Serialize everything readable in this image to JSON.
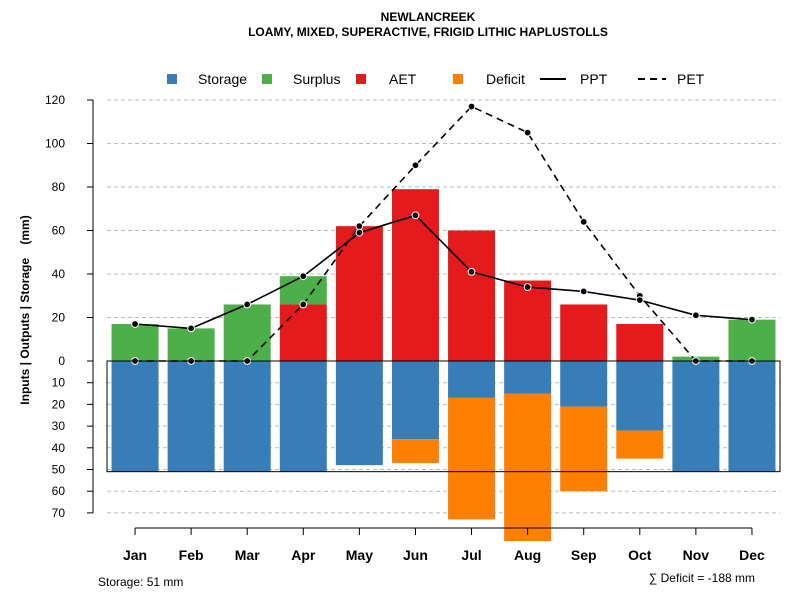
{
  "chart_data": {
    "type": "bar",
    "title": "NEWLANCREEK",
    "subtitle": "LOAMY, MIXED, SUPERACTIVE, FRIGID LITHIC HAPLUSTOLLS",
    "ylabel": "Inputs | Outputs | Storage    (mm)",
    "xlabel": "",
    "categories": [
      "Jan",
      "Feb",
      "Mar",
      "Apr",
      "May",
      "Jun",
      "Jul",
      "Aug",
      "Sep",
      "Oct",
      "Nov",
      "Dec"
    ],
    "ylim_upper": [
      0,
      120
    ],
    "ylim_lower": [
      0,
      70
    ],
    "yticks_upper": [
      "0",
      "20",
      "40",
      "60",
      "80",
      "100",
      "120"
    ],
    "yticks_lower": [
      "10",
      "20",
      "30",
      "40",
      "50",
      "60",
      "70"
    ],
    "storage_capacity": 51,
    "grid": true,
    "legend_position": "top",
    "legend": {
      "storage": "Storage",
      "surplus": "Surplus",
      "aet": "AET",
      "deficit": "Deficit",
      "ppt": "PPT",
      "pet": "PET"
    },
    "series": [
      {
        "name": "Surplus",
        "values": [
          17,
          15,
          26,
          13,
          0,
          0,
          0,
          0,
          0,
          0,
          2,
          19
        ]
      },
      {
        "name": "AET",
        "values": [
          0,
          0,
          0,
          26,
          62,
          79,
          60,
          37,
          26,
          17,
          0,
          0
        ]
      },
      {
        "name": "Storage",
        "values": [
          51,
          51,
          51,
          51,
          48,
          36,
          17,
          15,
          21,
          32,
          51,
          51
        ]
      },
      {
        "name": "Deficit",
        "values": [
          0,
          0,
          0,
          0,
          0,
          11,
          56,
          68,
          39,
          13,
          0,
          0
        ]
      },
      {
        "name": "PPT",
        "values": [
          17,
          15,
          26,
          39,
          59,
          67,
          41,
          34,
          32,
          28,
          21,
          19
        ]
      },
      {
        "name": "PET",
        "values": [
          0,
          0,
          0,
          26,
          62,
          90,
          117,
          105,
          64,
          30,
          0,
          0
        ]
      }
    ],
    "colors": {
      "storage": "#377eb8",
      "surplus": "#4daf4a",
      "aet": "#e41a1c",
      "deficit": "#ff7f00"
    },
    "annotations": {
      "storage_note": "Storage: 51 mm",
      "deficit_note": "∑ Deficit = -188 mm"
    }
  }
}
